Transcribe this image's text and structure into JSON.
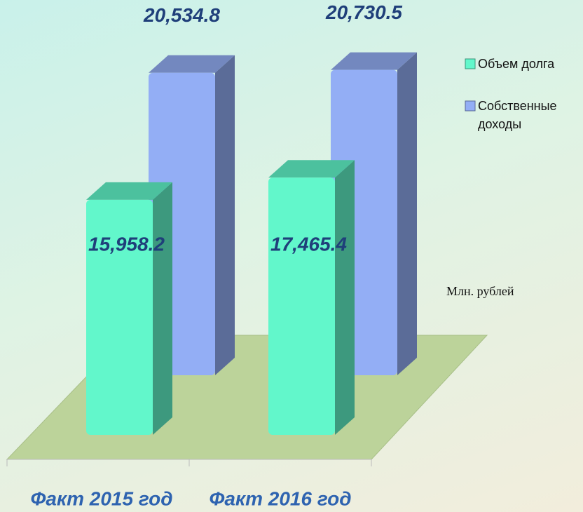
{
  "chart_data": {
    "type": "bar3d",
    "categories": [
      "Факт 2015 год",
      "Факт 2016 год"
    ],
    "series": [
      {
        "name": "Объем долга",
        "color": "#62f7cb",
        "values": [
          15958.2,
          17465.4
        ],
        "value_labels": [
          "15,958.2",
          "17,465.4"
        ]
      },
      {
        "name": "Собственные доходы",
        "color": "#93aef5",
        "values": [
          20534.8,
          20730.5
        ],
        "value_labels": [
          "20,534.8",
          "20,730.5"
        ]
      }
    ],
    "ylim": [
      0,
      25000
    ],
    "annotation": "Млн. рублей",
    "legend": "right"
  }
}
